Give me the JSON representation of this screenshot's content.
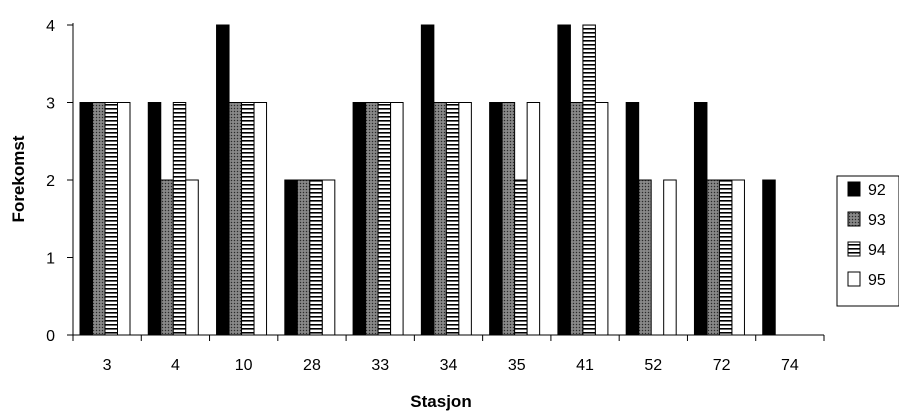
{
  "chart_data": {
    "type": "bar",
    "xlabel": "Stasjon",
    "ylabel": "Forekomst",
    "categories": [
      "3",
      "4",
      "10",
      "28",
      "33",
      "34",
      "35",
      "41",
      "52",
      "72",
      "74"
    ],
    "ylim": [
      0,
      4
    ],
    "yticks": [
      0,
      1,
      2,
      3,
      4
    ],
    "legend_position": "right",
    "grid": false,
    "series": [
      {
        "name": "92",
        "fill": "solid-black",
        "values": [
          3,
          3,
          4,
          2,
          3,
          4,
          3,
          4,
          3,
          3,
          2
        ]
      },
      {
        "name": "93",
        "fill": "dark-gray-dotted",
        "values": [
          3,
          2,
          3,
          2,
          3,
          3,
          3,
          3,
          2,
          2,
          null
        ]
      },
      {
        "name": "94",
        "fill": "horizontal-stripes",
        "values": [
          3,
          3,
          3,
          2,
          3,
          3,
          2,
          4,
          null,
          2,
          null
        ]
      },
      {
        "name": "95",
        "fill": "white",
        "values": [
          3,
          2,
          3,
          2,
          3,
          3,
          3,
          3,
          2,
          2,
          null
        ]
      }
    ]
  }
}
